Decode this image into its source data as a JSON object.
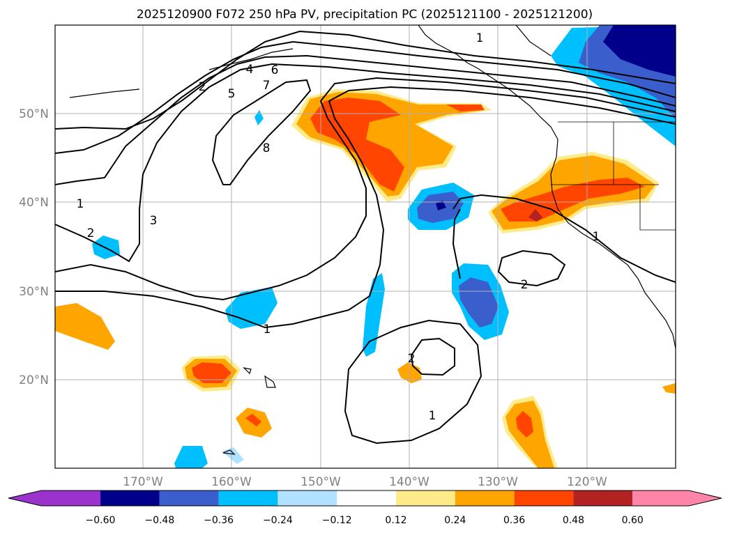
{
  "title": "2025120900 F072 250 hPa PV, precipitation PC (2025121100 - 2025121200)",
  "lat_labels": [
    "50°N",
    "40°N",
    "30°N",
    "20°N"
  ],
  "lon_labels": [
    "170°W",
    "160°W",
    "150°W",
    "140°W",
    "130°W",
    "120°W"
  ],
  "colorbar": {
    "ticks": [
      "−0.60",
      "−0.48",
      "−0.36",
      "−0.24",
      "−0.12",
      "0.12",
      "0.24",
      "0.36",
      "0.48",
      "0.60"
    ],
    "colors": [
      "#9933cc",
      "#00008b",
      "#3a5fcd",
      "#00bfff",
      "#b0e2ff",
      "#ffffff",
      "#ffeb8a",
      "#ffa500",
      "#ff4500",
      "#b22222",
      "#ff85a8"
    ]
  },
  "contour_labels": [
    "1",
    "2",
    "3",
    "4",
    "5",
    "6",
    "7",
    "8",
    "1",
    "2",
    "1",
    "1",
    "2",
    "1",
    "2"
  ]
}
